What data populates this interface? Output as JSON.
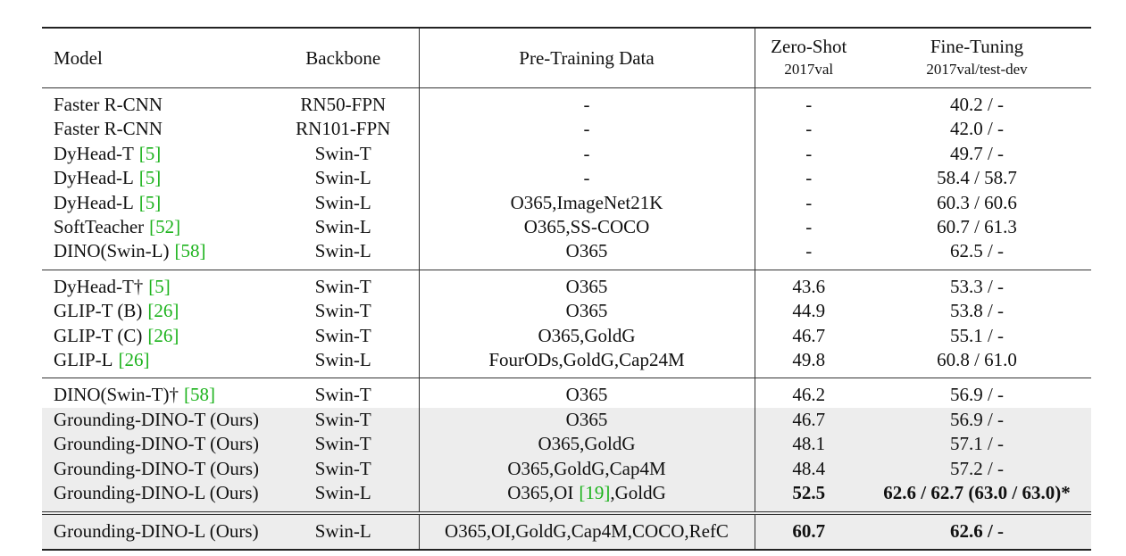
{
  "table": {
    "header": [
      [
        "Model"
      ],
      [
        "Backbone"
      ],
      [
        "Pre-Training Data"
      ],
      [
        "Zero-Shot",
        "2017val"
      ],
      [
        "Fine-Tuning",
        "2017val/test-dev"
      ]
    ],
    "groups": [
      {
        "rows": [
          {
            "cells": [
              [
                "Faster R-CNN"
              ],
              [
                "RN50-FPN"
              ],
              [
                "-"
              ],
              [
                "-"
              ],
              [
                "40.2 / -"
              ]
            ]
          },
          {
            "cells": [
              [
                "Faster R-CNN"
              ],
              [
                "RN101-FPN"
              ],
              [
                "-"
              ],
              [
                "-"
              ],
              [
                "42.0 / -"
              ]
            ]
          },
          {
            "cells": [
              [
                "DyHead-T",
                "[5]"
              ],
              [
                "Swin-T"
              ],
              [
                "-"
              ],
              [
                "-"
              ],
              [
                "49.7 / -"
              ]
            ]
          },
          {
            "cells": [
              [
                "DyHead-L",
                "[5]"
              ],
              [
                "Swin-L"
              ],
              [
                "-"
              ],
              [
                "-"
              ],
              [
                "58.4 / 58.7"
              ]
            ]
          },
          {
            "cells": [
              [
                "DyHead-L",
                "[5]"
              ],
              [
                "Swin-L"
              ],
              [
                "O365,ImageNet21K"
              ],
              [
                "-"
              ],
              [
                "60.3 / 60.6"
              ]
            ]
          },
          {
            "cells": [
              [
                "SoftTeacher",
                "[52]"
              ],
              [
                "Swin-L"
              ],
              [
                "O365,SS-COCO"
              ],
              [
                "-"
              ],
              [
                "60.7 / 61.3"
              ]
            ]
          },
          {
            "cells": [
              [
                "DINO(Swin-L)",
                "[58]"
              ],
              [
                "Swin-L"
              ],
              [
                "O365"
              ],
              [
                "-"
              ],
              [
                "62.5 / -"
              ]
            ]
          }
        ]
      },
      {
        "rows": [
          {
            "cells": [
              [
                "DyHead-T†",
                "[5]"
              ],
              [
                "Swin-T"
              ],
              [
                "O365"
              ],
              [
                "43.6"
              ],
              [
                "53.3 / -"
              ]
            ]
          },
          {
            "cells": [
              [
                "GLIP-T (B)",
                "[26]"
              ],
              [
                "Swin-T"
              ],
              [
                "O365"
              ],
              [
                "44.9"
              ],
              [
                "53.8 / -"
              ]
            ]
          },
          {
            "cells": [
              [
                "GLIP-T (C)",
                "[26]"
              ],
              [
                "Swin-T"
              ],
              [
                "O365,GoldG"
              ],
              [
                "46.7"
              ],
              [
                "55.1 / -"
              ]
            ]
          },
          {
            "cells": [
              [
                "GLIP-L",
                "[26]"
              ],
              [
                "Swin-L"
              ],
              [
                "FourODs,GoldG,Cap24M"
              ],
              [
                "49.8"
              ],
              [
                "60.8 / 61.0"
              ]
            ]
          }
        ]
      },
      {
        "rows": [
          {
            "cells": [
              [
                "DINO(Swin-T)†",
                "[58]"
              ],
              [
                "Swin-T"
              ],
              [
                "O365"
              ],
              [
                "46.2"
              ],
              [
                "56.9 / -"
              ]
            ]
          },
          {
            "shaded": true,
            "cells": [
              [
                "Grounding-DINO-T (Ours)"
              ],
              [
                "Swin-T"
              ],
              [
                "O365"
              ],
              [
                "46.7"
              ],
              [
                "56.9 / -"
              ]
            ]
          },
          {
            "shaded": true,
            "cells": [
              [
                "Grounding-DINO-T (Ours)"
              ],
              [
                "Swin-T"
              ],
              [
                "O365,GoldG"
              ],
              [
                "48.1"
              ],
              [
                "57.1 / -"
              ]
            ]
          },
          {
            "shaded": true,
            "cells": [
              [
                "Grounding-DINO-T (Ours)"
              ],
              [
                "Swin-T"
              ],
              [
                "O365,GoldG,Cap4M"
              ],
              [
                "48.4"
              ],
              [
                "57.2 / -"
              ]
            ]
          },
          {
            "shaded": true,
            "bold": [
              3,
              4
            ],
            "cells": [
              [
                "Grounding-DINO-L (Ours)"
              ],
              [
                "Swin-L"
              ],
              [
                "O365,OI",
                "[19]",
                ",GoldG"
              ],
              [
                "52.5"
              ],
              [
                "62.6 / 62.7 (63.0 / 63.0)*"
              ]
            ]
          }
        ]
      },
      {
        "rows": [
          {
            "shaded": true,
            "bold": [
              3,
              4
            ],
            "cells": [
              [
                "Grounding-DINO-L (Ours)"
              ],
              [
                "Swin-L"
              ],
              [
                "O365,OI,GoldG,Cap4M,COCO,RefC"
              ],
              [
                "60.7"
              ],
              [
                "62.6 / -"
              ]
            ]
          }
        ]
      }
    ]
  }
}
